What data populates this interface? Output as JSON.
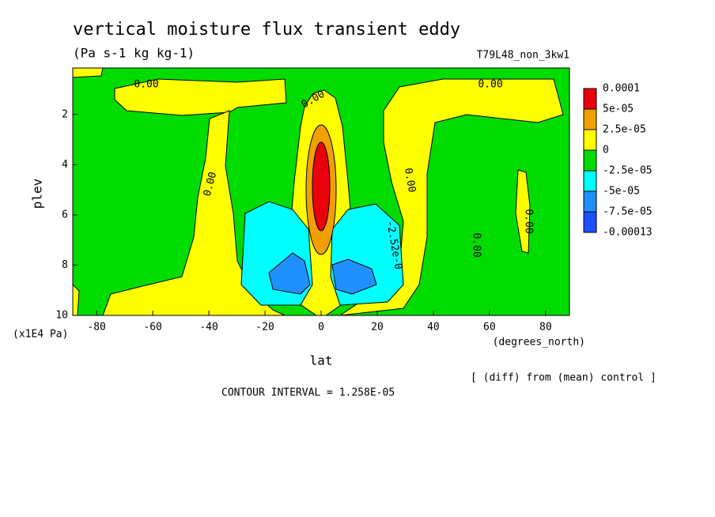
{
  "chart_data": {
    "type": "contour",
    "title": "vertical moisture flux transient eddy",
    "subtitle": "(Pa s-1 kg kg-1)",
    "run_label": "T79L48_non_3kw1",
    "x_label": "lat",
    "x_units": "(degrees_north)",
    "y_label": "plev",
    "y_units": "(x1E4 Pa)",
    "note": "[ (diff) from (mean) control ]",
    "contour_interval": "CONTOUR INTERVAL = 1.258E-05",
    "contour_labels": [
      "0.00",
      "0.00",
      "0.00",
      "0.00",
      "0.00",
      "0.00",
      "0.00",
      "-2.52e-0"
    ],
    "xlim": [
      -88.5,
      88.5
    ],
    "xticks": [
      -80,
      -60,
      -40,
      -20,
      0,
      20,
      40,
      60,
      80
    ],
    "ylim": [
      10,
      0.15
    ],
    "yticks": [
      2,
      4,
      6,
      8,
      10
    ],
    "levels": [
      {
        "value": 0.0001,
        "label": "0.0001"
      },
      {
        "value": 5e-05,
        "label": "5e-05"
      },
      {
        "value": 2.5e-05,
        "label": "2.5e-05"
      },
      0,
      {
        "value": -2.5e-05,
        "label": "-2.5e-05"
      },
      {
        "value": -5e-05,
        "label": "-5e-05"
      },
      {
        "value": -7.5e-05,
        "label": "-7.5e-05"
      },
      {
        "value": -0.00013,
        "label": "-0.00013"
      }
    ],
    "colors": [
      "#e8000b",
      "#f0a000",
      "#ffff00",
      "#00dc00",
      "#00ffff",
      "#2090ff",
      "#1e50ff"
    ]
  }
}
